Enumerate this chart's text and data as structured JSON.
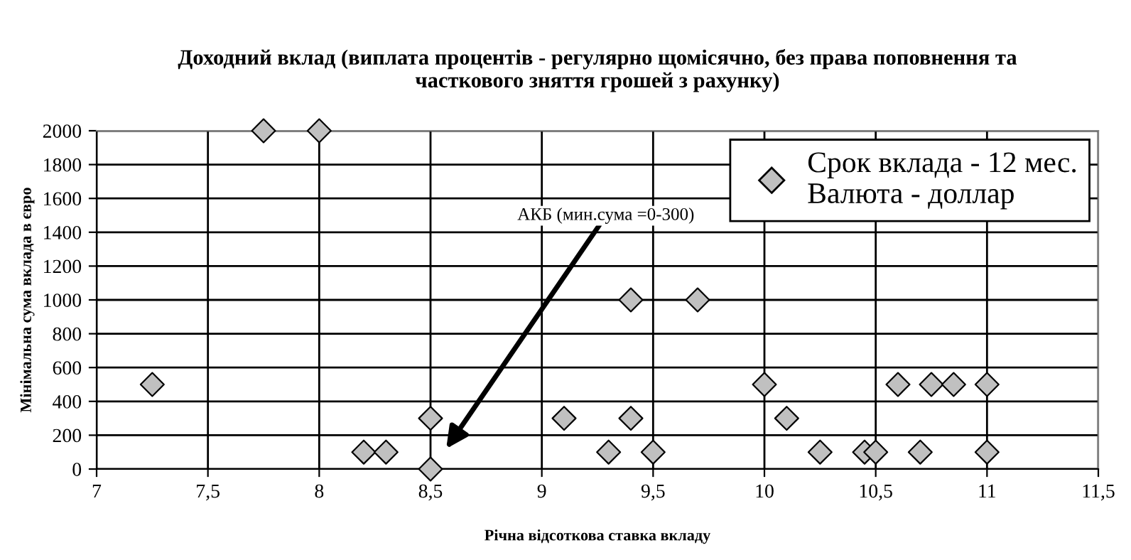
{
  "chart_data": {
    "type": "scatter",
    "title": "Доходний вклад (виплата процентів - регулярно щомісячно, без права поповнення та\nчасткового зняття грошей з рахунку)",
    "xlabel": "Річна відсоткова ставка вкладу",
    "ylabel": "Мінімальна сума вклада в євро",
    "series": [
      {
        "name": "Срок вклада - 12 мес.\nВалюта - доллар",
        "color": "#c0c0c0",
        "x": [
          7.25,
          7.75,
          8,
          8.2,
          8.3,
          8.5,
          8.5,
          9.1,
          9.3,
          9.4,
          9.4,
          9.5,
          9.7,
          10,
          10.1,
          10.25,
          10.45,
          10.5,
          10.6,
          10.7,
          10.75,
          10.85,
          11,
          11
        ],
        "values": [
          500,
          2000,
          2000,
          100,
          100,
          300,
          0,
          300,
          100,
          1000,
          300,
          100,
          1000,
          500,
          300,
          100,
          100,
          100,
          500,
          100,
          500,
          500,
          500,
          100
        ]
      }
    ],
    "annotations": [
      "АКБ (мин.сума =0-300)"
    ],
    "xlim": [
      7,
      11.5
    ],
    "xticks": [
      7,
      {
        "value": 7.5,
        "label": "7,5"
      },
      8,
      {
        "value": 8.5,
        "label": "8,5"
      },
      9,
      {
        "value": 9.5,
        "label": "9,5"
      },
      10,
      {
        "value": 10.5,
        "label": "10,5"
      },
      11,
      {
        "value": 11.5,
        "label": "11,5"
      }
    ],
    "ylim": [
      0,
      2000
    ],
    "yticks": [
      0,
      200,
      400,
      600,
      800,
      1000,
      1200,
      1400,
      1600,
      1800,
      2000
    ],
    "grid": true,
    "legend": "top right",
    "marker": "diamond"
  }
}
